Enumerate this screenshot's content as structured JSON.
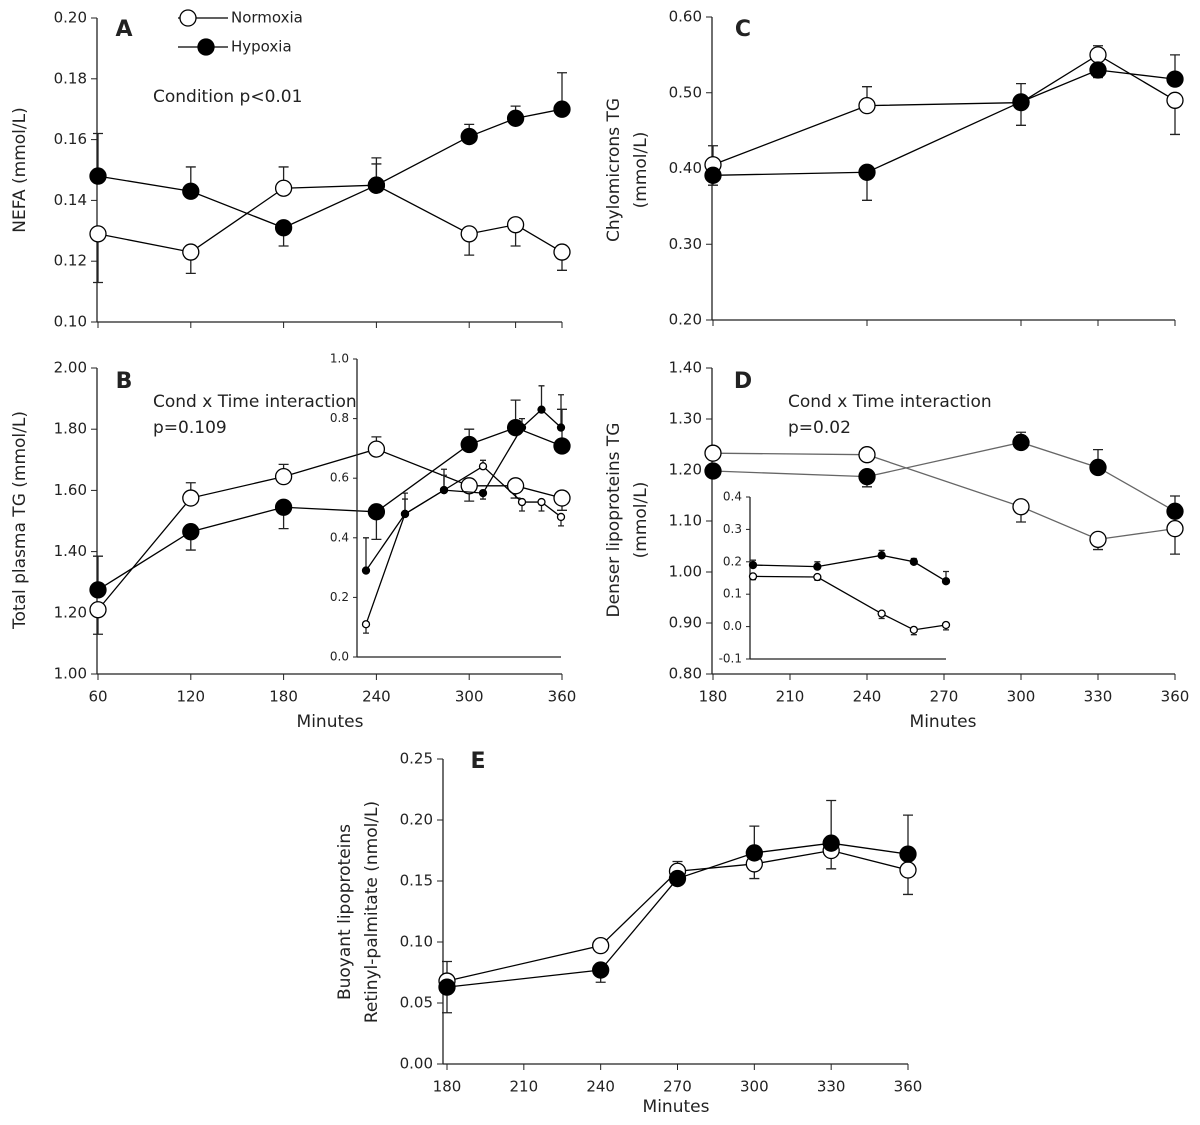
{
  "chart_data": [
    {
      "type": "line",
      "label": "A",
      "ylabel": [
        "NEFA (mmol/L)"
      ],
      "annotations": [
        "Condition p<0.01"
      ],
      "legend": "top",
      "xlim": [
        60,
        360
      ],
      "ylim": [
        0.1,
        0.2
      ],
      "yticks": [
        {
          "value": 0.1,
          "label": "0.10"
        },
        {
          "value": 0.12,
          "label": "0.12"
        },
        {
          "value": 0.14,
          "label": "0.14"
        },
        {
          "value": 0.16,
          "label": "0.16"
        },
        {
          "value": 0.18,
          "label": "0.18"
        },
        {
          "value": 0.2,
          "label": "0.20"
        }
      ],
      "x": [
        60,
        120,
        180,
        240,
        300,
        330,
        360
      ],
      "series": [
        {
          "name": "Normoxia",
          "color": "#000000",
          "marker": "open",
          "values": [
            0.129,
            0.123,
            0.144,
            0.145,
            0.129,
            0.132,
            0.123
          ],
          "errors": [
            0.016,
            0.007,
            0.007,
            0.007,
            0.007,
            0.007,
            0.006
          ]
        },
        {
          "name": "Hypoxia",
          "color": "#000000",
          "marker": "filled",
          "values": [
            0.148,
            0.143,
            0.131,
            0.145,
            0.161,
            0.167,
            0.17
          ],
          "errors": [
            0.014,
            0.008,
            0.006,
            0.009,
            0.004,
            0.004,
            0.012
          ]
        }
      ]
    },
    {
      "type": "line",
      "label": "B",
      "ylabel": [
        "Total plasma TG (mmol/L)"
      ],
      "xlabel": "Minutes",
      "annotations": [
        "Cond x Time interaction",
        "p=0.109"
      ],
      "xlim": [
        60,
        360
      ],
      "ylim": [
        1.0,
        2.0
      ],
      "xticks": [
        60,
        120,
        180,
        240,
        300,
        360
      ],
      "yticks": [
        {
          "value": 1.0,
          "label": "1.00"
        },
        {
          "value": 1.2,
          "label": "1.20"
        },
        {
          "value": 1.4,
          "label": "1.40"
        },
        {
          "value": 1.6,
          "label": "1.60"
        },
        {
          "value": 1.8,
          "label": "1.80"
        },
        {
          "value": 2.0,
          "label": "2.00"
        }
      ],
      "x": [
        60,
        120,
        180,
        240,
        300,
        330,
        360
      ],
      "series": [
        {
          "name": "Normoxia",
          "color": "#000000",
          "marker": "open",
          "values": [
            1.21,
            1.575,
            1.645,
            1.735,
            1.615,
            1.615,
            1.575
          ],
          "errors": [
            0.08,
            0.05,
            0.04,
            0.04,
            0.05,
            0.04,
            0.04
          ]
        },
        {
          "name": "Hypoxia",
          "color": "#000000",
          "marker": "filled",
          "values": [
            1.275,
            1.465,
            1.545,
            1.53,
            1.75,
            1.805,
            1.745
          ],
          "errors": [
            0.11,
            0.06,
            0.07,
            0.09,
            0.05,
            0.09,
            0.12
          ]
        }
      ]
    },
    {
      "type": "line",
      "xlim": [
        60,
        360
      ],
      "ylim": [
        0.0,
        1.0
      ],
      "yticks": [
        {
          "value": 0.0,
          "label": "0.0"
        },
        0.2,
        0.4,
        0.6,
        0.8,
        {
          "value": 1.0,
          "label": "1.0"
        }
      ],
      "x": [
        60,
        120,
        180,
        240,
        300,
        330,
        360
      ],
      "series": [
        {
          "name": "Normoxia",
          "color": "#000000",
          "marker": "open",
          "values": [
            0.11,
            0.48,
            0.56,
            0.64,
            0.52,
            0.52,
            0.47
          ],
          "errors": [
            0.03,
            0.05,
            0.05,
            0.02,
            0.03,
            0.03,
            0.03
          ]
        },
        {
          "name": "Hypoxia",
          "color": "#000000",
          "marker": "filled",
          "values": [
            0.29,
            0.48,
            0.56,
            0.55,
            0.77,
            0.83,
            0.77
          ],
          "errors": [
            0.11,
            0.07,
            0.07,
            0.02,
            0.03,
            0.08,
            0.11
          ]
        }
      ]
    },
    {
      "type": "line",
      "label": "C",
      "ylabel": [
        "Chylomicrons TG",
        "(mmol/L)"
      ],
      "xlim": [
        180,
        360
      ],
      "ylim": [
        0.2,
        0.6
      ],
      "yticks": [
        {
          "value": 0.2,
          "label": "0.20"
        },
        {
          "value": 0.3,
          "label": "0.30"
        },
        {
          "value": 0.4,
          "label": "0.40"
        },
        {
          "value": 0.5,
          "label": "0.50"
        },
        {
          "value": 0.6,
          "label": "0.60"
        }
      ],
      "x": [
        180,
        240,
        300,
        330,
        360
      ],
      "series": [
        {
          "name": "Normoxia",
          "color": "#000000",
          "marker": "open",
          "values": [
            0.405,
            0.483,
            0.487,
            0.55,
            0.49
          ],
          "errors": [
            0.025,
            0.025,
            0.03,
            0.012,
            0.045
          ]
        },
        {
          "name": "Hypoxia",
          "color": "#000000",
          "marker": "filled",
          "values": [
            0.391,
            0.395,
            0.488,
            0.53,
            0.518
          ],
          "errors": [
            0.013,
            0.037,
            0.024,
            0.01,
            0.032
          ]
        }
      ]
    },
    {
      "type": "line",
      "label": "D",
      "ylabel": [
        "Denser lipoproteins TG",
        "(mmol/L)"
      ],
      "xlabel": "Minutes",
      "annotations": [
        "Cond x Time interaction",
        "p=0.02"
      ],
      "xlim": [
        180,
        360
      ],
      "ylim": [
        0.8,
        1.4
      ],
      "xticks": [
        180,
        210,
        240,
        270,
        300,
        330,
        360
      ],
      "yticks": [
        {
          "value": 0.8,
          "label": "0.80"
        },
        {
          "value": 0.9,
          "label": "0.90"
        },
        {
          "value": 1.0,
          "label": "1.00"
        },
        {
          "value": 1.1,
          "label": "1.10"
        },
        {
          "value": 1.2,
          "label": "1.20"
        },
        {
          "value": 1.3,
          "label": "1.30"
        },
        {
          "value": 1.4,
          "label": "1.40"
        }
      ],
      "x": [
        180,
        240,
        300,
        330,
        360
      ],
      "series": [
        {
          "name": "Normoxia",
          "color": "#666666",
          "marker": "open",
          "values": [
            1.233,
            1.23,
            1.128,
            1.064,
            1.085
          ],
          "errors": [
            0.005,
            0.005,
            0.03,
            0.02,
            0.05
          ]
        },
        {
          "name": "Hypoxia",
          "color": "#666666",
          "marker": "filled",
          "values": [
            1.198,
            1.187,
            1.254,
            1.205,
            1.119
          ],
          "errors": [
            0.005,
            0.02,
            0.02,
            0.035,
            0.03
          ]
        }
      ]
    },
    {
      "type": "line",
      "xlim": [
        180,
        360
      ],
      "ylim": [
        -0.1,
        0.4
      ],
      "yticks": [
        -0.1,
        {
          "value": 0.0,
          "label": "0.0"
        },
        0.1,
        0.2,
        0.3,
        0.4
      ],
      "x": [
        180,
        240,
        300,
        330,
        360
      ],
      "series": [
        {
          "name": "Normoxia",
          "color": "#000000",
          "marker": "open",
          "values": [
            0.155,
            0.153,
            0.04,
            -0.01,
            0.005
          ],
          "errors": [
            0.01,
            0.01,
            0.015,
            0.015,
            0.015
          ]
        },
        {
          "name": "Hypoxia",
          "color": "#000000",
          "marker": "filled",
          "values": [
            0.19,
            0.185,
            0.22,
            0.2,
            0.14
          ],
          "errors": [
            0.015,
            0.015,
            0.015,
            0.01,
            0.03
          ]
        }
      ]
    },
    {
      "type": "line",
      "label": "E",
      "ylabel": [
        "Buoyant lipoproteins",
        "Retinyl-palmitate (nmol/L)"
      ],
      "xlabel": "Minutes",
      "xlim": [
        180,
        360
      ],
      "ylim": [
        0.0,
        0.25
      ],
      "xticks": [
        180,
        210,
        240,
        270,
        300,
        330,
        360
      ],
      "yticks": [
        {
          "value": 0.0,
          "label": "0.00"
        },
        {
          "value": 0.05,
          "label": "0.05"
        },
        {
          "value": 0.1,
          "label": "0.10"
        },
        {
          "value": 0.15,
          "label": "0.15"
        },
        {
          "value": 0.2,
          "label": "0.20"
        },
        {
          "value": 0.25,
          "label": "0.25"
        }
      ],
      "x": [
        180,
        240,
        270,
        300,
        330,
        360
      ],
      "series": [
        {
          "name": "Normoxia",
          "color": "#000000",
          "marker": "open",
          "values": [
            0.068,
            0.097,
            0.158,
            0.164,
            0.175,
            0.159
          ],
          "errors": [
            0.016,
            0.005,
            0.008,
            0.012,
            0.015,
            0.02
          ]
        },
        {
          "name": "Hypoxia",
          "color": "#000000",
          "marker": "filled",
          "values": [
            0.063,
            0.077,
            0.152,
            0.173,
            0.181,
            0.172
          ],
          "errors": [
            0.021,
            0.01,
            0.004,
            0.022,
            0.035,
            0.032
          ]
        }
      ]
    }
  ]
}
